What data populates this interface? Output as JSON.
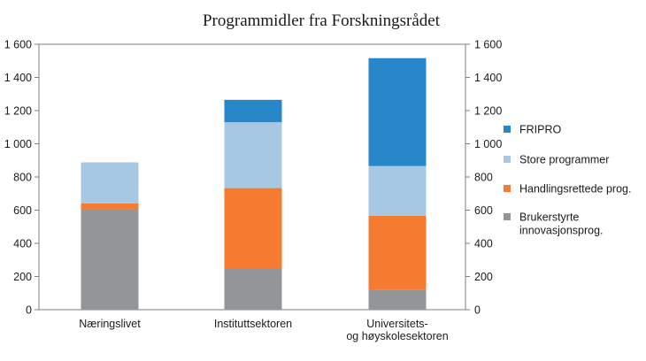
{
  "chart_data": {
    "type": "bar",
    "stacked": true,
    "title": "Programmidler fra Forskningsrådet",
    "categories": [
      [
        "Næringslivet"
      ],
      [
        "Instituttsektoren"
      ],
      [
        "Universitets-",
        "og høyskolesektoren"
      ]
    ],
    "ylim": [
      0,
      1600
    ],
    "y_ticks": [
      0,
      200,
      400,
      600,
      800,
      1000,
      1200,
      1400,
      1600
    ],
    "y_tick_labels": [
      "0",
      "200",
      "400",
      "600",
      "800",
      "1 000",
      "1 200",
      "1 400",
      "1 600"
    ],
    "secondary_axis": true,
    "grid": false,
    "legend_position": "right",
    "series": [
      {
        "name": "Brukerstyrte innovasjonsprog.",
        "legend_lines": [
          "Brukerstyrte",
          "innovasjonsprog."
        ],
        "color": "#939598",
        "values": [
          605,
          248,
          118
        ]
      },
      {
        "name": "Handlingsrettede prog.",
        "legend_lines": [
          "Handlingsrettede prog."
        ],
        "color": "#f47b30",
        "values": [
          35,
          485,
          448
        ]
      },
      {
        "name": "Store programmer",
        "legend_lines": [
          "Store programmer"
        ],
        "color": "#a6c8e3",
        "values": [
          248,
          397,
          300
        ]
      },
      {
        "name": "FRIPRO",
        "legend_lines": [
          "FRIPRO"
        ],
        "color": "#2787c8",
        "values": [
          0,
          135,
          650
        ]
      }
    ]
  }
}
